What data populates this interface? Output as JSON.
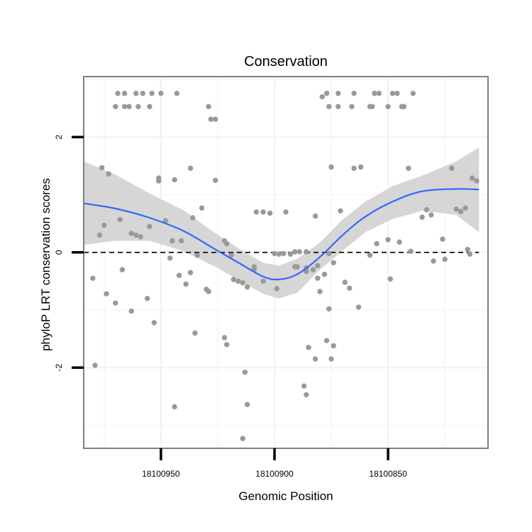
{
  "chart_data": {
    "type": "scatter",
    "title": "Conservation",
    "xlabel": "Genomic Position",
    "ylabel": "phyloP LRT conservation scores",
    "x_reversed": true,
    "xlim": [
      18100984,
      18100806
    ],
    "ylim": [
      -3.4,
      3.05
    ],
    "x_ticks": [
      18100950,
      18100900,
      18100850
    ],
    "y_ticks": [
      -2,
      0,
      2
    ],
    "grid": true,
    "reference_line": 0,
    "colors": {
      "points": "#999999",
      "smooth_line": "#3366ff",
      "ribbon": "#cccccc",
      "panel_border": "#7f7f7f",
      "grid": "#f2f2f2"
    },
    "points": [
      [
        18100969,
        2.76
      ],
      [
        18100966,
        2.76
      ],
      [
        18100961,
        2.76
      ],
      [
        18100958,
        2.76
      ],
      [
        18100954,
        2.76
      ],
      [
        18100950,
        2.76
      ],
      [
        18100943,
        2.76
      ],
      [
        18100970,
        2.53
      ],
      [
        18100966,
        2.53
      ],
      [
        18100964,
        2.53
      ],
      [
        18100960,
        2.53
      ],
      [
        18100955,
        2.53
      ],
      [
        18100929,
        2.53
      ],
      [
        18100926,
        2.31
      ],
      [
        18100928,
        2.31
      ],
      [
        18100879,
        2.7
      ],
      [
        18100877,
        2.76
      ],
      [
        18100872,
        2.76
      ],
      [
        18100865,
        2.76
      ],
      [
        18100856,
        2.76
      ],
      [
        18100854,
        2.76
      ],
      [
        18100848,
        2.76
      ],
      [
        18100846,
        2.76
      ],
      [
        18100839,
        2.76
      ],
      [
        18100876,
        2.53
      ],
      [
        18100872,
        2.53
      ],
      [
        18100866,
        2.53
      ],
      [
        18100858,
        2.53
      ],
      [
        18100857,
        2.53
      ],
      [
        18100850,
        2.53
      ],
      [
        18100844,
        2.53
      ],
      [
        18100843,
        2.53
      ],
      [
        18100976,
        1.47
      ],
      [
        18100973,
        1.36
      ],
      [
        18100951,
        1.24
      ],
      [
        18100944,
        1.26
      ],
      [
        18100951,
        1.29
      ],
      [
        18100937,
        1.46
      ],
      [
        18100926,
        1.25
      ],
      [
        18100865,
        1.46
      ],
      [
        18100862,
        1.48
      ],
      [
        18100875,
        1.48
      ],
      [
        18100841,
        1.46
      ],
      [
        18100822,
        1.46
      ],
      [
        18100813,
        1.29
      ],
      [
        18100811,
        1.24
      ],
      [
        18100977,
        0.3
      ],
      [
        18100975,
        0.47
      ],
      [
        18100968,
        0.57
      ],
      [
        18100963,
        0.33
      ],
      [
        18100961,
        0.3
      ],
      [
        18100959,
        0.27
      ],
      [
        18100955,
        0.45
      ],
      [
        18100948,
        0.55
      ],
      [
        18100945,
        0.2
      ],
      [
        18100941,
        0.2
      ],
      [
        18100936,
        0.6
      ],
      [
        18100932,
        0.77
      ],
      [
        18100922,
        0.2
      ],
      [
        18100921,
        0.15
      ],
      [
        18100919,
        -0.05
      ],
      [
        18100908,
        0.7
      ],
      [
        18100905,
        0.7
      ],
      [
        18100902,
        0.68
      ],
      [
        18100895,
        0.7
      ],
      [
        18100891,
        0.01
      ],
      [
        18100889,
        0.01
      ],
      [
        18100886,
        0.01
      ],
      [
        18100882,
        0.63
      ],
      [
        18100871,
        0.72
      ],
      [
        18100855,
        0.15
      ],
      [
        18100850,
        0.22
      ],
      [
        18100845,
        0.18
      ],
      [
        18100840,
        0.02
      ],
      [
        18100835,
        0.61
      ],
      [
        18100833,
        0.74
      ],
      [
        18100831,
        0.65
      ],
      [
        18100826,
        0.23
      ],
      [
        18100820,
        0.75
      ],
      [
        18100818,
        0.71
      ],
      [
        18100816,
        0.77
      ],
      [
        18100815,
        0.05
      ],
      [
        18100814,
        -0.03
      ],
      [
        18100980,
        -0.45
      ],
      [
        18100974,
        -0.72
      ],
      [
        18100970,
        -0.88
      ],
      [
        18100967,
        -0.3
      ],
      [
        18100963,
        -1.02
      ],
      [
        18100956,
        -0.8
      ],
      [
        18100953,
        -1.22
      ],
      [
        18100946,
        -0.1
      ],
      [
        18100942,
        -0.4
      ],
      [
        18100939,
        -0.55
      ],
      [
        18100937,
        -0.35
      ],
      [
        18100934,
        -0.05
      ],
      [
        18100930,
        -0.64
      ],
      [
        18100929,
        -0.68
      ],
      [
        18100935,
        -1.4
      ],
      [
        18100922,
        -1.48
      ],
      [
        18100921,
        -1.6
      ],
      [
        18100918,
        -0.47
      ],
      [
        18100916,
        -0.5
      ],
      [
        18100914,
        -0.53
      ],
      [
        18100912,
        -0.6
      ],
      [
        18100909,
        -0.25
      ],
      [
        18100909,
        -0.3
      ],
      [
        18100905,
        -0.5
      ],
      [
        18100899,
        -0.63
      ],
      [
        18100891,
        -0.25
      ],
      [
        18100886,
        -0.33
      ],
      [
        18100881,
        -0.45
      ],
      [
        18100881,
        -0.23
      ],
      [
        18100878,
        -0.38
      ],
      [
        18100876,
        -0.02
      ],
      [
        18100874,
        -0.18
      ],
      [
        18100900,
        -0.02
      ],
      [
        18100898,
        -0.03
      ],
      [
        18100896,
        -0.02
      ],
      [
        18100893,
        -0.03
      ],
      [
        18100890,
        -0.25
      ],
      [
        18100886,
        -0.27
      ],
      [
        18100883,
        -0.3
      ],
      [
        18100880,
        -0.68
      ],
      [
        18100869,
        -0.52
      ],
      [
        18100867,
        -0.62
      ],
      [
        18100863,
        -0.95
      ],
      [
        18100858,
        -0.05
      ],
      [
        18100849,
        -0.46
      ],
      [
        18100830,
        -0.15
      ],
      [
        18100825,
        -0.12
      ],
      [
        18100979,
        -1.96
      ],
      [
        18100944,
        -2.68
      ],
      [
        18100913,
        -2.08
      ],
      [
        18100912,
        -2.64
      ],
      [
        18100914,
        -3.23
      ],
      [
        18100887,
        -2.32
      ],
      [
        18100886,
        -2.47
      ],
      [
        18100885,
        -1.65
      ],
      [
        18100882,
        -1.85
      ],
      [
        18100877,
        -1.53
      ],
      [
        18100875,
        -1.85
      ],
      [
        18100874,
        -1.62
      ],
      [
        18100876,
        -0.98
      ]
    ],
    "smooth": {
      "x": [
        18100984,
        18100970,
        18100955,
        18100940,
        18100926,
        18100915,
        18100905,
        18100898,
        18100890,
        18100880,
        18100870,
        18100860,
        18100848,
        18100835,
        18100820,
        18100810
      ],
      "y": [
        0.85,
        0.76,
        0.6,
        0.37,
        0.05,
        -0.2,
        -0.42,
        -0.47,
        -0.38,
        -0.08,
        0.3,
        0.62,
        0.88,
        1.06,
        1.1,
        1.09
      ]
    },
    "ribbon": {
      "x": [
        18100984,
        18100970,
        18100955,
        18100940,
        18100926,
        18100915,
        18100905,
        18100898,
        18100890,
        18100880,
        18100870,
        18100860,
        18100848,
        18100835,
        18100820,
        18100810
      ],
      "upper": [
        1.58,
        1.35,
        1.02,
        0.73,
        0.33,
        0.05,
        -0.18,
        -0.23,
        -0.11,
        0.17,
        0.57,
        0.88,
        1.15,
        1.33,
        1.58,
        1.82
      ],
      "lower": [
        0.13,
        0.2,
        0.2,
        0.02,
        -0.25,
        -0.5,
        -0.72,
        -0.8,
        -0.7,
        -0.3,
        0.03,
        0.35,
        0.58,
        0.72,
        0.65,
        0.35
      ]
    }
  }
}
